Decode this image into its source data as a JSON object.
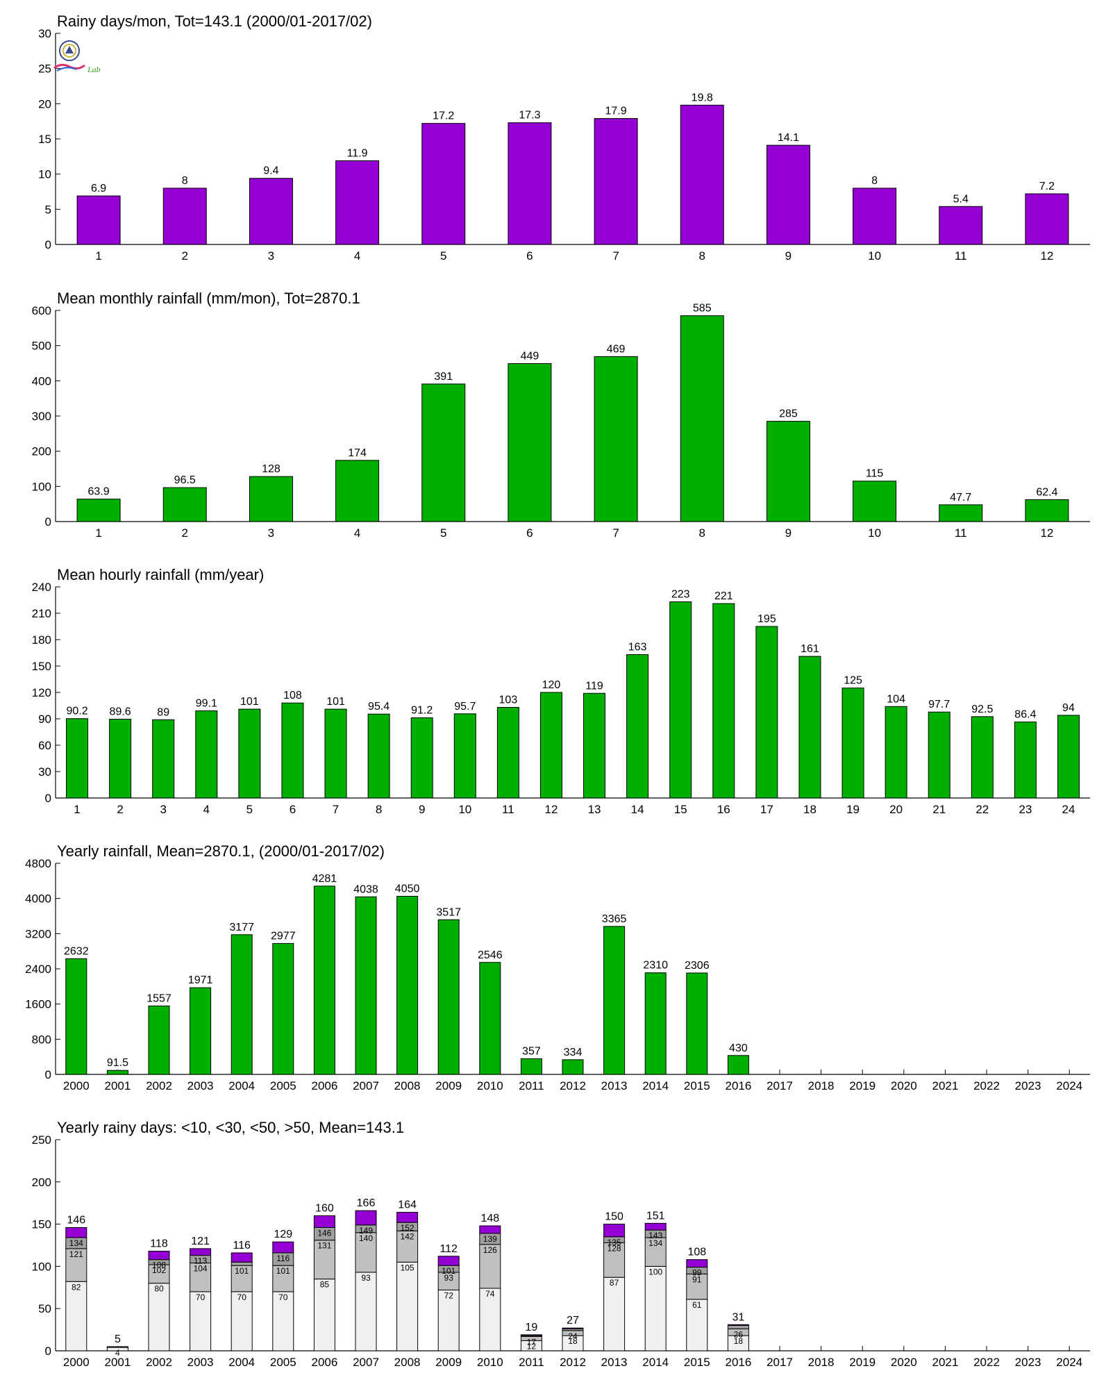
{
  "colors": {
    "purple": "#9400D3",
    "green": "#00B000",
    "seg_lt10": "#F0F0F0",
    "seg_lt30": "#C0C0C0",
    "seg_lt50": "#A0A0A0",
    "seg_gt50": "#9400D3"
  },
  "logo": {
    "icon": "lab-logo-seal",
    "text": "Lab"
  },
  "chart_data": [
    {
      "type": "bar",
      "title": "Rainy days/mon, Tot=143.1 (2000/01-2017/02)",
      "xlabel": "",
      "ylabel": "",
      "categories": [
        "1",
        "2",
        "3",
        "4",
        "5",
        "6",
        "7",
        "8",
        "9",
        "10",
        "11",
        "12"
      ],
      "values": [
        6.9,
        8,
        9.4,
        11.9,
        17.2,
        17.3,
        17.9,
        19.8,
        14.1,
        8,
        5.4,
        7.2
      ],
      "labels": [
        "6.9",
        "8",
        "9.4",
        "11.9",
        "17.2",
        "17.3",
        "17.9",
        "19.8",
        "14.1",
        "8",
        "5.4",
        "7.2"
      ],
      "ylim": [
        0,
        30
      ],
      "yticks": [
        "0",
        "5",
        "10",
        "15",
        "20",
        "25",
        "30"
      ],
      "color": "purple",
      "grid": false
    },
    {
      "type": "bar",
      "title": "Mean monthly rainfall (mm/mon), Tot=2870.1",
      "xlabel": "",
      "ylabel": "",
      "categories": [
        "1",
        "2",
        "3",
        "4",
        "5",
        "6",
        "7",
        "8",
        "9",
        "10",
        "11",
        "12"
      ],
      "values": [
        63.9,
        96.5,
        128,
        174,
        391,
        449,
        469,
        585,
        285,
        115,
        47.7,
        62.4
      ],
      "labels": [
        "63.9",
        "96.5",
        "128",
        "174",
        "391",
        "449",
        "469",
        "585",
        "285",
        "115",
        "47.7",
        "62.4"
      ],
      "ylim": [
        0,
        600
      ],
      "yticks": [
        "0",
        "100",
        "200",
        "300",
        "400",
        "500",
        "600"
      ],
      "color": "green",
      "grid": false
    },
    {
      "type": "bar",
      "title": "Mean hourly rainfall (mm/year)",
      "xlabel": "",
      "ylabel": "",
      "categories": [
        "1",
        "2",
        "3",
        "4",
        "5",
        "6",
        "7",
        "8",
        "9",
        "10",
        "11",
        "12",
        "13",
        "14",
        "15",
        "16",
        "17",
        "18",
        "19",
        "20",
        "21",
        "22",
        "23",
        "24"
      ],
      "values": [
        90.2,
        89.6,
        89,
        99.1,
        101,
        108,
        101,
        95.4,
        91.2,
        95.7,
        103,
        120,
        119,
        163,
        223,
        221,
        195,
        161,
        125,
        104,
        97.7,
        92.5,
        86.4,
        94
      ],
      "labels": [
        "90.2",
        "89.6",
        "89",
        "99.1",
        "101",
        "108",
        "101",
        "95.4",
        "91.2",
        "95.7",
        "103",
        "120",
        "119",
        "163",
        "223",
        "221",
        "195",
        "161",
        "125",
        "104",
        "97.7",
        "92.5",
        "86.4",
        "94"
      ],
      "ylim": [
        0,
        240
      ],
      "yticks": [
        "0",
        "30",
        "60",
        "90",
        "120",
        "150",
        "180",
        "210",
        "240"
      ],
      "color": "green",
      "grid": false
    },
    {
      "type": "bar",
      "title": "Yearly rainfall, Mean=2870.1, (2000/01-2017/02)",
      "xlabel": "",
      "ylabel": "",
      "categories": [
        "2000",
        "2001",
        "2002",
        "2003",
        "2004",
        "2005",
        "2006",
        "2007",
        "2008",
        "2009",
        "2010",
        "2011",
        "2012",
        "2013",
        "2014",
        "2015",
        "2016",
        "2017",
        "2018",
        "2019",
        "2020",
        "2021",
        "2022",
        "2023",
        "2024"
      ],
      "values": [
        2632,
        91.5,
        1557,
        1971,
        3177,
        2977,
        4281,
        4038,
        4050,
        3517,
        2546,
        357,
        334,
        3365,
        2310,
        2306,
        430,
        null,
        null,
        null,
        null,
        null,
        null,
        null,
        null
      ],
      "labels": [
        "2632",
        "91.5",
        "1557",
        "1971",
        "3177",
        "2977",
        "4281",
        "4038",
        "4050",
        "3517",
        "2546",
        "357",
        "334",
        "3365",
        "2310",
        "2306",
        "430",
        "",
        "",
        "",
        "",
        "",
        "",
        "",
        ""
      ],
      "ylim": [
        0,
        4800
      ],
      "yticks": [
        "0",
        "800",
        "1600",
        "2400",
        "3200",
        "4000",
        "4800"
      ],
      "color": "green",
      "grid": false
    },
    {
      "type": "bar",
      "stacked": true,
      "title": "Yearly rainy days: <10, <30, <50, >50, Mean=143.1",
      "xlabel": "",
      "ylabel": "",
      "categories": [
        "2000",
        "2001",
        "2002",
        "2003",
        "2004",
        "2005",
        "2006",
        "2007",
        "2008",
        "2009",
        "2010",
        "2011",
        "2012",
        "2013",
        "2014",
        "2015",
        "2016",
        "2017",
        "2018",
        "2019",
        "2020",
        "2021",
        "2022",
        "2023",
        "2024"
      ],
      "cumulative": [
        [
          82,
          121,
          134,
          146
        ],
        [
          4,
          4,
          5,
          5
        ],
        [
          80,
          102,
          108,
          118
        ],
        [
          70,
          104,
          113,
          121
        ],
        [
          70,
          101,
          105,
          116
        ],
        [
          70,
          101,
          116,
          129
        ],
        [
          85,
          131,
          146,
          160
        ],
        [
          93,
          140,
          149,
          166
        ],
        [
          105,
          142,
          152,
          164
        ],
        [
          72,
          93,
          101,
          112
        ],
        [
          74,
          126,
          139,
          148
        ],
        [
          12,
          17,
          18,
          19
        ],
        [
          18,
          24,
          26,
          27
        ],
        [
          87,
          128,
          135,
          150
        ],
        [
          100,
          134,
          143,
          151
        ],
        [
          61,
          91,
          99,
          108
        ],
        [
          18,
          26,
          30,
          31
        ],
        null,
        null,
        null,
        null,
        null,
        null,
        null,
        null
      ],
      "segment_labels": [
        [
          "82",
          "121",
          "134"
        ],
        [
          "4",
          "",
          ""
        ],
        [
          "80",
          "102",
          "108"
        ],
        [
          "70",
          "104",
          "113"
        ],
        [
          "70",
          "101",
          ""
        ],
        [
          "70",
          "101",
          "116"
        ],
        [
          "85",
          "131",
          "146"
        ],
        [
          "93",
          "140",
          "149"
        ],
        [
          "105",
          "142",
          "152"
        ],
        [
          "72",
          "93",
          "101"
        ],
        [
          "74",
          "126",
          "139"
        ],
        [
          "12",
          "17",
          ""
        ],
        [
          "18",
          "24",
          ""
        ],
        [
          "87",
          "128",
          "135"
        ],
        [
          "100",
          "134",
          "143"
        ],
        [
          "61",
          "91",
          "99"
        ],
        [
          "18",
          "26",
          ""
        ],
        null,
        null,
        null,
        null,
        null,
        null,
        null,
        null
      ],
      "total_labels": [
        "146",
        "5",
        "118",
        "121",
        "116",
        "129",
        "160",
        "166",
        "164",
        "112",
        "148",
        "19",
        "27",
        "150",
        "151",
        "108",
        "31",
        "",
        "",
        "",
        "",
        "",
        "",
        "",
        ""
      ],
      "series": [
        {
          "name": "<10",
          "color": "seg_lt10"
        },
        {
          "name": "<30",
          "color": "seg_lt30"
        },
        {
          "name": "<50",
          "color": "seg_lt50"
        },
        {
          "name": ">50",
          "color": "seg_gt50"
        }
      ],
      "ylim": [
        0,
        250
      ],
      "yticks": [
        "0",
        "50",
        "100",
        "150",
        "200",
        "250"
      ],
      "grid": false
    }
  ]
}
